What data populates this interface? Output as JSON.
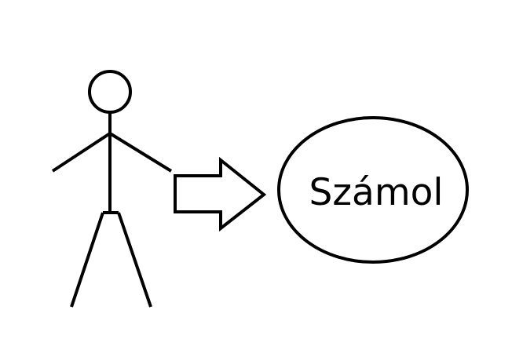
{
  "diagram": {
    "actor": {
      "icon": "stick-figure-icon"
    },
    "connector": {
      "icon": "hollow-right-arrow-icon"
    },
    "use_case": {
      "label": "Számol"
    }
  },
  "colors": {
    "background": "#ffffff",
    "stroke": "#000000",
    "text": "#000000"
  }
}
